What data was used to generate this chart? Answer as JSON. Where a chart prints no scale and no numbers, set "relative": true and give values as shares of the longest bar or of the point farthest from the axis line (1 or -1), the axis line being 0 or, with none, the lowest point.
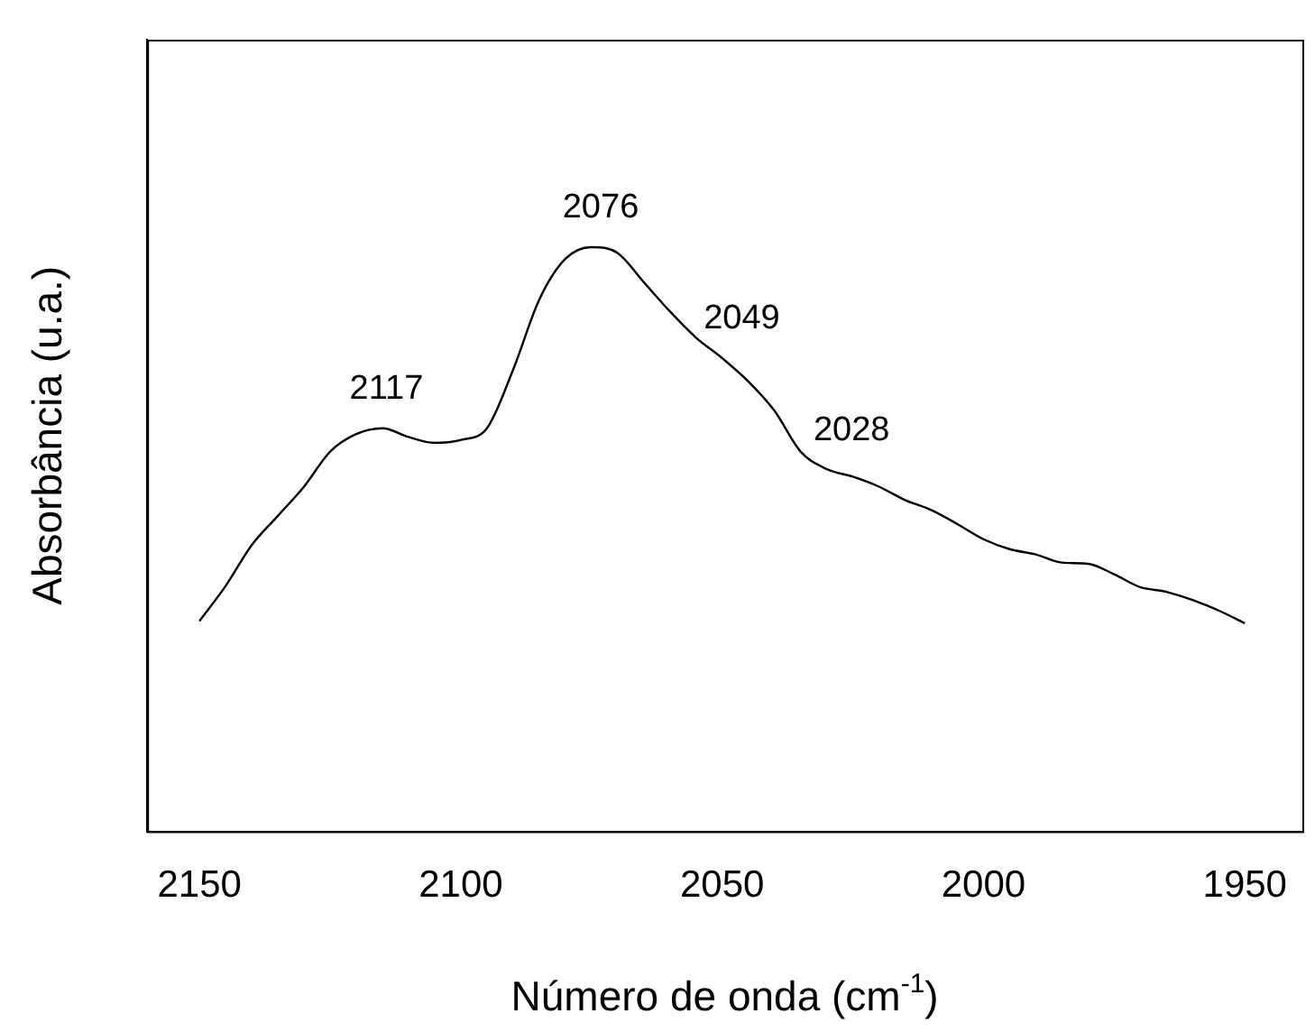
{
  "chart_data": {
    "type": "line",
    "xlabel": "Número de onda (cm$^{-1}$)",
    "ylabel": "Absorbância (u.a.)",
    "relative": true,
    "xlim": [
      2160,
      1939
    ],
    "xticks": [
      2150,
      2100,
      2050,
      2000,
      1950
    ],
    "grid": false,
    "legend": false,
    "marker": "none",
    "line_style": "solid",
    "x": [
      2150,
      2145,
      2140,
      2135,
      2130,
      2125,
      2120,
      2115,
      2110,
      2105,
      2100,
      2095,
      2090,
      2085,
      2080,
      2075,
      2070,
      2065,
      2060,
      2055,
      2050,
      2045,
      2040,
      2035,
      2030,
      2025,
      2020,
      2015,
      2010,
      2005,
      2000,
      1995,
      1990,
      1985,
      1980,
      1975,
      1970,
      1965,
      1960,
      1955,
      1950
    ],
    "series": [
      {
        "color": "#000000",
        "values": [
          0.36,
          0.42,
          0.49,
          0.54,
          0.59,
          0.65,
          0.68,
          0.69,
          0.675,
          0.665,
          0.67,
          0.69,
          0.79,
          0.91,
          0.98,
          1.0,
          0.99,
          0.94,
          0.89,
          0.845,
          0.81,
          0.77,
          0.72,
          0.65,
          0.62,
          0.607,
          0.59,
          0.567,
          0.55,
          0.526,
          0.5,
          0.483,
          0.474,
          0.46,
          0.458,
          0.44,
          0.418,
          0.41,
          0.396,
          0.378,
          0.356
        ]
      }
    ],
    "annotations": [
      {
        "text": "2117",
        "x": 2117,
        "y": 0.69
      },
      {
        "text": "2076",
        "x": 2076,
        "y": 1.0
      },
      {
        "text": "2049",
        "x": 2049,
        "y": 0.81
      },
      {
        "text": "2028",
        "x": 2028,
        "y": 0.62
      }
    ]
  }
}
